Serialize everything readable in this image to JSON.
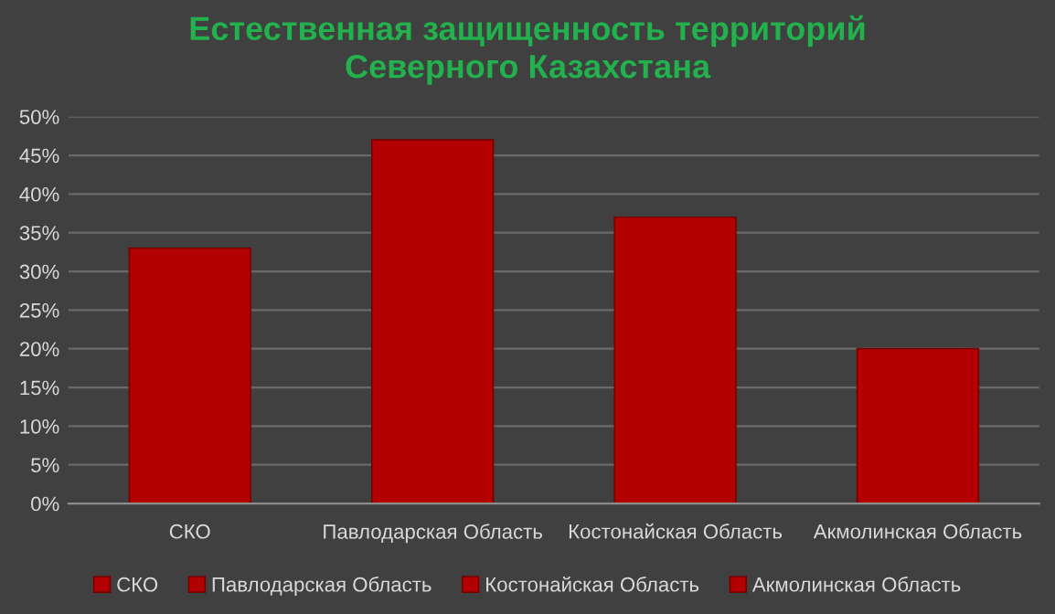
{
  "chart_data": {
    "type": "bar",
    "title": "Естественная защищенность территорий\nСеверного Казахстана",
    "categories": [
      "СКО",
      "Павлодарская Область",
      "Костонайская Область",
      "Акмолинская Область"
    ],
    "series": [
      {
        "name": "СКО",
        "color": "#b30000",
        "values": [
          33,
          null,
          null,
          null
        ]
      },
      {
        "name": "Павлодарская Область",
        "color": "#b30000",
        "values": [
          null,
          47,
          null,
          null
        ]
      },
      {
        "name": "Костонайская Область",
        "color": "#b30000",
        "values": [
          null,
          null,
          37,
          null
        ]
      },
      {
        "name": "Акмолинская Область",
        "color": "#b30000",
        "values": [
          null,
          null,
          null,
          20
        ]
      }
    ],
    "ylim": [
      0,
      50
    ],
    "yticks": [
      {
        "value": 0,
        "label": "0%"
      },
      {
        "value": 5,
        "label": "5%"
      },
      {
        "value": 10,
        "label": "10%"
      },
      {
        "value": 15,
        "label": "15%"
      },
      {
        "value": 20,
        "label": "20%"
      },
      {
        "value": 25,
        "label": "25%"
      },
      {
        "value": 30,
        "label": "30%"
      },
      {
        "value": 35,
        "label": "35%"
      },
      {
        "value": 40,
        "label": "40%"
      },
      {
        "value": 45,
        "label": "45%"
      },
      {
        "value": 50,
        "label": "50%"
      }
    ],
    "grid": "y",
    "legend": "bottom"
  }
}
